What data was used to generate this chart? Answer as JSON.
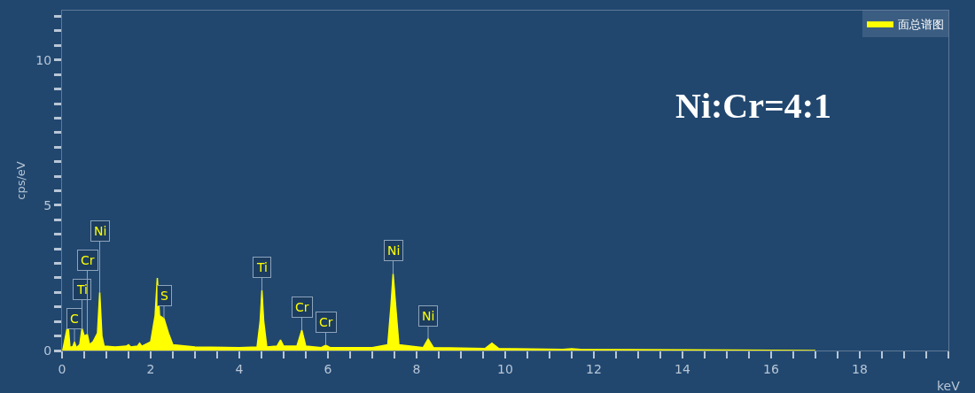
{
  "chart_data": {
    "type": "area",
    "xlabel": "keV",
    "ylabel": "cps/eV",
    "x": [
      0,
      0.05,
      0.1,
      0.13,
      0.18,
      0.25,
      0.28,
      0.32,
      0.4,
      0.45,
      0.5,
      0.57,
      0.62,
      0.7,
      0.8,
      0.85,
      0.9,
      0.95,
      1.2,
      1.45,
      1.5,
      1.55,
      1.7,
      1.75,
      1.8,
      2.0,
      2.1,
      2.15,
      2.2,
      2.3,
      2.4,
      2.5,
      3.0,
      4.0,
      4.4,
      4.47,
      4.51,
      4.55,
      4.62,
      4.85,
      4.93,
      5.0,
      5.3,
      5.41,
      5.5,
      5.85,
      5.95,
      6.05,
      7.0,
      7.35,
      7.42,
      7.47,
      7.53,
      7.6,
      8.15,
      8.26,
      8.38,
      9.55,
      9.7,
      9.85,
      11.3,
      11.5,
      11.7,
      14,
      17
    ],
    "series": [
      {
        "name": "面总谱图",
        "color": "#ffff00",
        "values": [
          0,
          null,
          null,
          1.0,
          0.1,
          0.15,
          0.3,
          0.1,
          0.2,
          0.76,
          0.5,
          0.55,
          0.2,
          0.3,
          0.6,
          2.0,
          0.5,
          0.15,
          0.12,
          0.15,
          0.2,
          0.12,
          0.15,
          0.25,
          0.15,
          0.3,
          1.2,
          2.5,
          1.2,
          1.1,
          0.6,
          0.2,
          0.12,
          0.1,
          0.12,
          1.0,
          2.07,
          1.0,
          0.12,
          0.15,
          0.36,
          0.15,
          0.15,
          0.7,
          0.15,
          0.1,
          0.18,
          0.1,
          0.1,
          0.2,
          1.5,
          2.64,
          1.5,
          0.2,
          0.1,
          0.4,
          0.1,
          0.07,
          0.25,
          0.07,
          0.04,
          0.06,
          0.04,
          0.02,
          0
        ]
      }
    ],
    "xlim": [
      0,
      20
    ],
    "xticks": [
      0,
      {
        "value": 0.5,
        "label": null
      },
      {
        "value": 1,
        "label": null
      },
      {
        "value": 1.5,
        "label": null
      },
      2,
      {
        "value": 2.5,
        "label": null
      },
      {
        "value": 3,
        "label": null
      },
      {
        "value": 3.5,
        "label": null
      },
      4,
      {
        "value": 4.5,
        "label": null
      },
      {
        "value": 5,
        "label": null
      },
      {
        "value": 5.5,
        "label": null
      },
      6,
      {
        "value": 6.5,
        "label": null
      },
      {
        "value": 7,
        "label": null
      },
      {
        "value": 7.5,
        "label": null
      },
      8,
      {
        "value": 8.5,
        "label": null
      },
      {
        "value": 9,
        "label": null
      },
      {
        "value": 9.5,
        "label": null
      },
      10,
      {
        "value": 10.5,
        "label": null
      },
      {
        "value": 11,
        "label": null
      },
      {
        "value": 11.5,
        "label": null
      },
      12,
      {
        "value": 12.5,
        "label": null
      },
      {
        "value": 13,
        "label": null
      },
      {
        "value": 13.5,
        "label": null
      },
      14,
      {
        "value": 14.5,
        "label": null
      },
      {
        "value": 15,
        "label": null
      },
      {
        "value": 15.5,
        "label": null
      },
      16,
      {
        "value": 16.5,
        "label": null
      },
      {
        "value": 17,
        "label": null
      },
      {
        "value": 17.5,
        "label": null
      },
      18,
      {
        "value": 18.5,
        "label": null
      },
      {
        "value": 19,
        "label": null
      },
      {
        "value": 19.5,
        "label": null
      },
      {
        "value": 20,
        "label": null
      }
    ],
    "ylim": [
      0,
      11.7
    ],
    "yticks": [
      0,
      {
        "value": 0.5,
        "label": null
      },
      {
        "value": 1,
        "label": null
      },
      {
        "value": 1.5,
        "label": null
      },
      {
        "value": 2,
        "label": null
      },
      {
        "value": 2.5,
        "label": null
      },
      {
        "value": 3,
        "label": null
      },
      {
        "value": 3.5,
        "label": null
      },
      {
        "value": 4,
        "label": null
      },
      {
        "value": 4.5,
        "label": null
      },
      5,
      {
        "value": 5.5,
        "label": null
      },
      {
        "value": 6,
        "label": null
      },
      {
        "value": 6.5,
        "label": null
      },
      {
        "value": 7,
        "label": null
      },
      {
        "value": 7.5,
        "label": null
      },
      {
        "value": 8,
        "label": null
      },
      {
        "value": 8.5,
        "label": null
      },
      {
        "value": 9,
        "label": null
      },
      {
        "value": 9.5,
        "label": null
      },
      10,
      {
        "value": 10.5,
        "label": null
      },
      {
        "value": 11,
        "label": null
      },
      {
        "value": 11.5,
        "label": null
      }
    ],
    "grid": false,
    "legend": "top right",
    "marker": "none",
    "line_style": "solid",
    "annotations": [
      {
        "text": "C",
        "x": 0.28,
        "y": 0.3
      },
      {
        "text": "Ti",
        "x": 0.45,
        "y": 0.76
      },
      {
        "text": "Cr",
        "x": 0.57,
        "y": 0.55
      },
      {
        "text": "Ni",
        "x": 0.85,
        "y": 2.0
      },
      {
        "text": "S",
        "x": 2.3,
        "y": 1.1
      },
      {
        "text": "Ti",
        "x": 4.51,
        "y": 2.07
      },
      {
        "text": "Cr",
        "x": 5.41,
        "y": 0.7
      },
      {
        "text": "Cr",
        "x": 5.95,
        "y": 0.18
      },
      {
        "text": "Ni",
        "x": 7.47,
        "y": 2.64
      },
      {
        "text": "Ni",
        "x": 8.26,
        "y": 0.4
      },
      "Ni:Cr=4:1"
    ]
  }
}
